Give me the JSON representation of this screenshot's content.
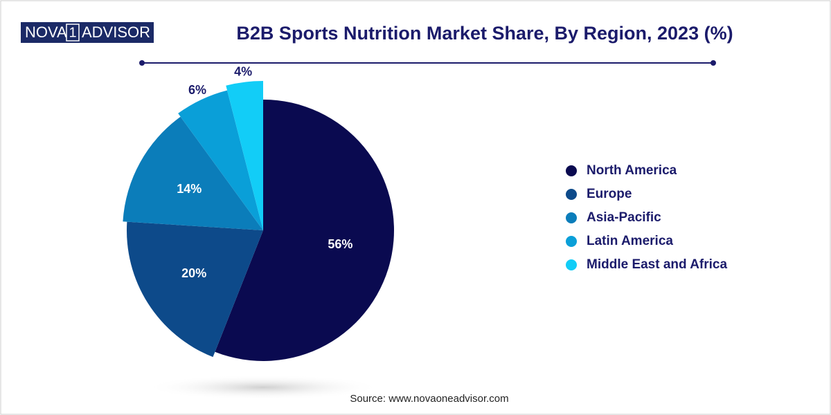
{
  "logo": {
    "left": "NOVA",
    "mark": "1",
    "right": "ADVISOR"
  },
  "chart_data": {
    "type": "pie",
    "title": "B2B Sports Nutrition Market Share, By Region, 2023 (%)",
    "source": "Source: www.novaoneadvisor.com",
    "categories": [
      "North America",
      "Europe",
      "Asia-Pacific",
      "Latin America",
      "Middle East and Africa"
    ],
    "values": [
      56,
      20,
      14,
      6,
      4
    ],
    "value_labels": [
      "56%",
      "20%",
      "14%",
      "6%",
      "4%"
    ],
    "colors": [
      "#0a0a50",
      "#0d4a8a",
      "#0b7dba",
      "#0a9fd8",
      "#12cdf7"
    ],
    "legend": "right"
  }
}
